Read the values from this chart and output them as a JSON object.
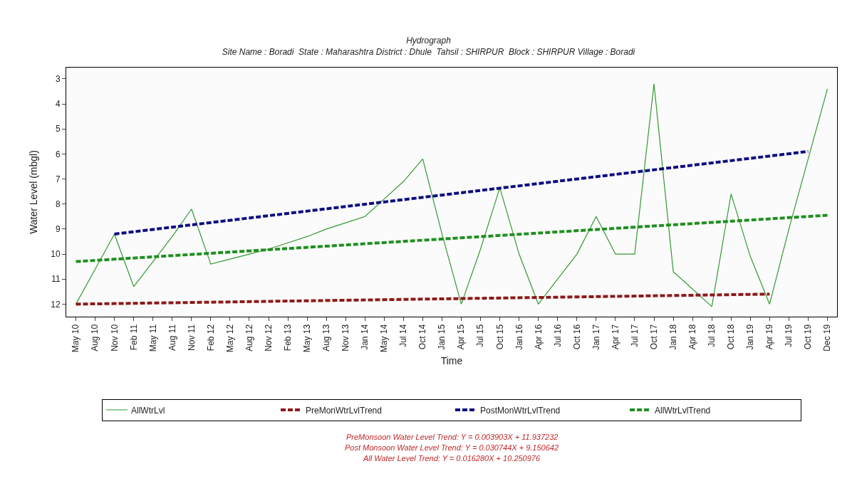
{
  "chart_data": {
    "type": "line",
    "title": "Hydrograph",
    "subtitle": "Site Name : Boradi  State : Maharashtra District : Dhule  Tahsil : SHIRPUR  Block : SHIRPUR Village : Boradi",
    "xlabel": "Time",
    "ylabel": "Water Level (mbgl)",
    "categories": [
      "May 10",
      "Aug 10",
      "Nov 10",
      "Feb 11",
      "May 11",
      "Aug 11",
      "Nov 11",
      "Feb 12",
      "May 12",
      "Aug 12",
      "Nov 12",
      "Feb 13",
      "May 13",
      "Aug 13",
      "Nov 13",
      "Jan 14",
      "May 14",
      "Jul 14",
      "Oct 14",
      "Jan 15",
      "Apr 15",
      "Jul 15",
      "Oct 15",
      "Jan 16",
      "Apr 16",
      "Jul 16",
      "Oct 16",
      "Jan 17",
      "Apr 17",
      "Jul 17",
      "Oct 17",
      "Jan 18",
      "Apr 18",
      "Jul 18",
      "Oct 18",
      "Jan 19",
      "Apr 19",
      "Jul 19",
      "Oct 19",
      "Dec 19"
    ],
    "ylim": [
      12.5,
      2.55
    ],
    "yticks": [
      3,
      4,
      5,
      6,
      7,
      8,
      9,
      10,
      11,
      12
    ],
    "legend": "bottom",
    "marker": "none",
    "series": [
      {
        "name": "AllWtrLvl",
        "color": "#339933",
        "line_style": "solid",
        "values": [
          12.0,
          10.6,
          9.2,
          11.3,
          10.3,
          9.3,
          8.2,
          10.4,
          10.2,
          10.0,
          9.8,
          9.55,
          9.3,
          9.0,
          8.75,
          8.5,
          7.8,
          7.1,
          6.2,
          9.2,
          12.0,
          9.8,
          7.35,
          10.0,
          12.0,
          11.0,
          10.0,
          8.5,
          10.0,
          10.0,
          3.2,
          10.7,
          11.4,
          12.1,
          7.6,
          10.1,
          12.0,
          9.0,
          6.2,
          3.4
        ]
      },
      {
        "name": "PreMonWtrLvlTrend",
        "color": "#8b1a1a",
        "line_style": "dashed",
        "x": [
          "May 10",
          "Apr 19"
        ],
        "values": [
          12.0,
          11.6
        ]
      },
      {
        "name": "PostMonWtrLvlTrend",
        "color": "#0d0d80",
        "line_style": "dashed",
        "x": [
          "Nov 10",
          "Oct 19"
        ],
        "values": [
          9.2,
          5.9
        ]
      },
      {
        "name": "AllWtrLvlTrend",
        "color": "#1f8f1f",
        "line_style": "dashed",
        "x": [
          "May 10",
          "Dec 19"
        ],
        "values": [
          10.3,
          8.45
        ]
      }
    ],
    "annotations": [
      "PreMonsoon Water Level Trend: Y = 0.003903X + 11.937232",
      "Post Monsoon Water Level Trend: Y = 0.030744X + 9.150642",
      "All Water Level Trend: Y = 0.016280X + 10.250976"
    ]
  }
}
